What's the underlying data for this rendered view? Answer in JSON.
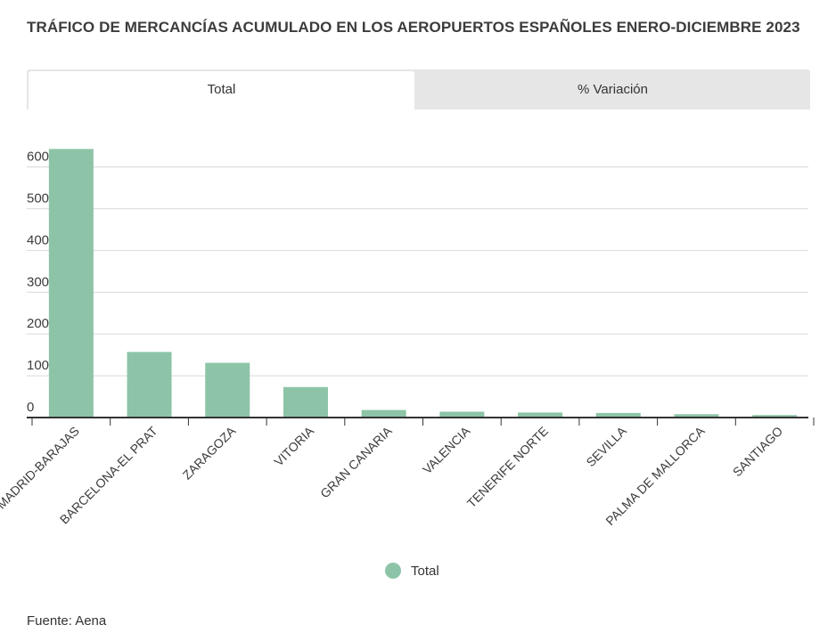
{
  "chart_data": {
    "type": "bar",
    "title": "TRÁFICO DE MERCANCÍAS ACUMULADO EN LOS AEROPUERTOS ESPAÑOLES ENERO-DICIEMBRE 2023",
    "categories": [
      "MADRID-BARAJAS",
      "BARCELONA-EL PRAT",
      "ZARAGOZA",
      "VITORIA",
      "GRAN CANARIA",
      "VALENCIA",
      "TENERIFE NORTE",
      "SEVILLA",
      "PALMA DE MALLORCA",
      "SANTIAGO"
    ],
    "series": [
      {
        "name": "Total",
        "values": [
          643000,
          157000,
          131000,
          73000,
          18000,
          14000,
          12000,
          11000,
          8000,
          6000
        ]
      }
    ],
    "yticks": [
      0,
      100000,
      200000,
      300000,
      400000,
      500000,
      600000
    ],
    "ytick_labels": [
      "0",
      "100.000",
      "200.000",
      "300.000",
      "400.000",
      "500.000",
      "600.000"
    ],
    "ylim": [
      0,
      650000
    ],
    "xlabel": "",
    "ylabel": "",
    "grid": true,
    "legend_position": "bottom-center"
  },
  "tabs": [
    {
      "label": "Total",
      "active": true
    },
    {
      "label": "% Variación",
      "active": false
    }
  ],
  "legend": {
    "label": "Total"
  },
  "source": "Fuente: Aena",
  "colors": {
    "bar": "#8dc4a7",
    "grid": "#d9d9d9",
    "axis": "#333333"
  }
}
